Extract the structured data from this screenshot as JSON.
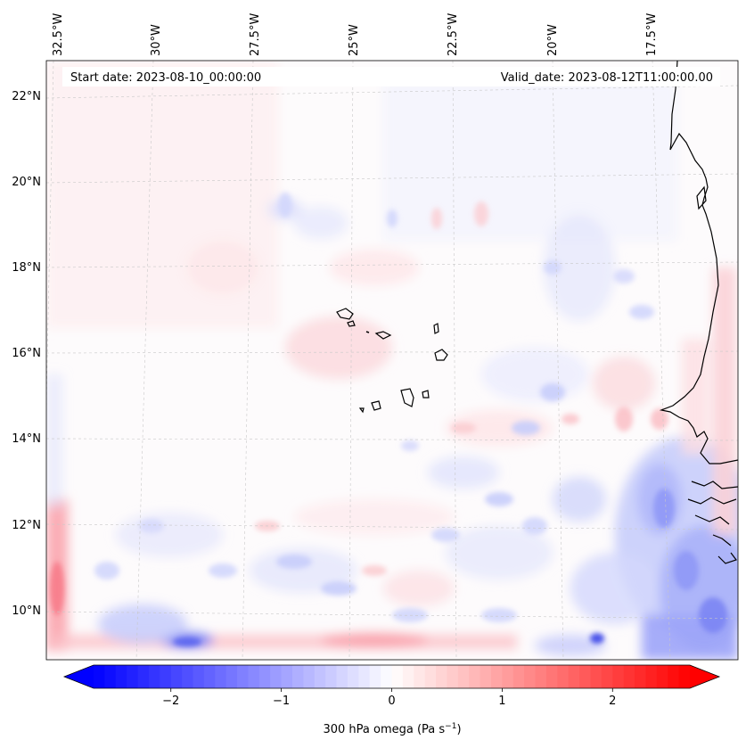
{
  "map": {
    "start_date_label": "Start date: 2023-08-10_00:00:00",
    "valid_date_label": "Valid_date: 2023-08-12T11:00:00.00",
    "lon_ticks": [
      "32.5°W",
      "30°W",
      "27.5°W",
      "25°W",
      "22.5°W",
      "20°W",
      "17.5°W"
    ],
    "lat_ticks": [
      "22°N",
      "20°N",
      "18°N",
      "16°N",
      "14°N",
      "12°N",
      "10°N"
    ],
    "colors": {
      "negative": "#0000ff",
      "positive": "#ff0000",
      "neutral": "#ffffff",
      "coastline": "#000000",
      "grid": "#c8c8c8"
    }
  },
  "colorbar": {
    "ticks": [
      "−2",
      "−1",
      "0",
      "1",
      "2"
    ],
    "tick_values": [
      -2,
      -1,
      0,
      1,
      2
    ],
    "range": [
      -2.7,
      2.7
    ],
    "label_main": "300 hPa omega (Pa s",
    "label_sup": "−1",
    "label_end": ")",
    "extend": "both",
    "colormap": "bwr"
  }
}
